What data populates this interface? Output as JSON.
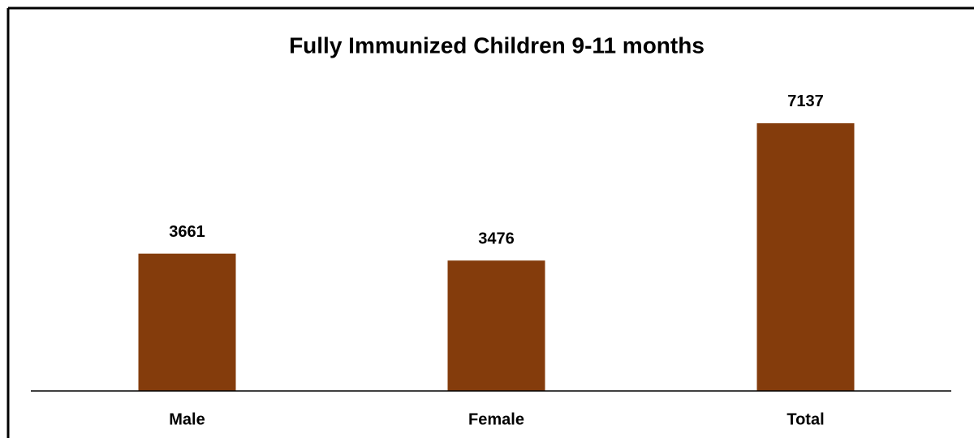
{
  "chart_data": {
    "type": "bar",
    "title": "Fully Immunized Children 9-11 months",
    "categories": [
      "Male",
      "Female",
      "Total"
    ],
    "values": [
      3661,
      3476,
      7137
    ],
    "color": "#843c0c",
    "ylim": [
      0,
      8000
    ]
  }
}
